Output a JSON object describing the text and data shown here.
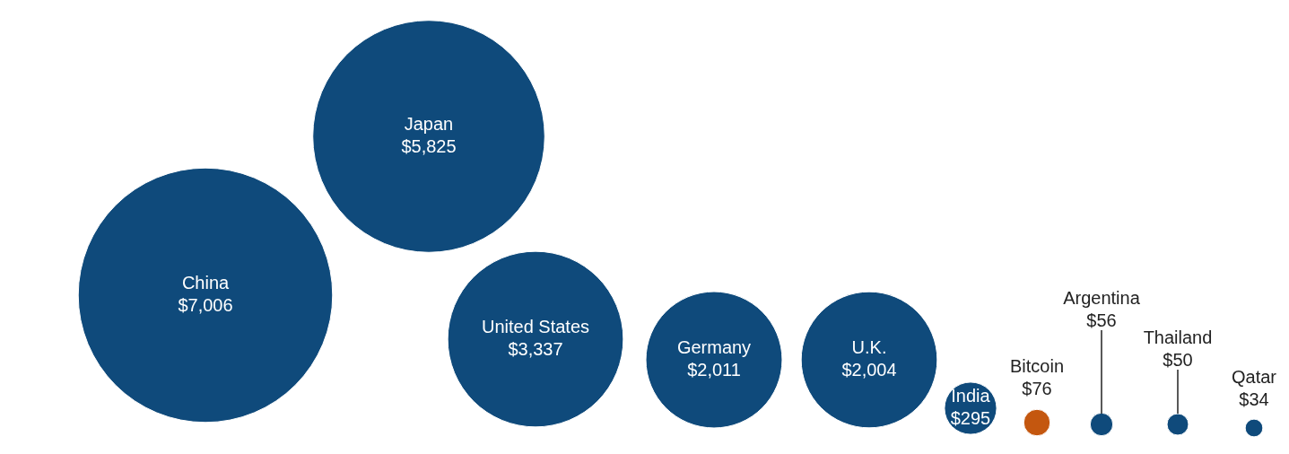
{
  "chart_data": {
    "type": "other",
    "categories": [
      "China",
      "Japan",
      "United States",
      "Germany",
      "U.K.",
      "India",
      "Bitcoin",
      "Argentina",
      "Thailand",
      "Qatar"
    ],
    "values": [
      7006,
      5825,
      3337,
      2011,
      2004,
      295,
      76,
      56,
      50,
      34
    ],
    "value_labels": [
      "$7,006",
      "$5,825",
      "$3,337",
      "$2,011",
      "$2,004",
      "$295",
      "$76",
      "$56",
      "$50",
      "$34"
    ],
    "colors": [
      "#0f4a7b",
      "#0f4a7b",
      "#0f4a7b",
      "#0f4a7b",
      "#0f4a7b",
      "#0f4a7b",
      "#c4570f",
      "#0f4a7b",
      "#0f4a7b",
      "#0f4a7b"
    ],
    "data_labels": true
  }
}
